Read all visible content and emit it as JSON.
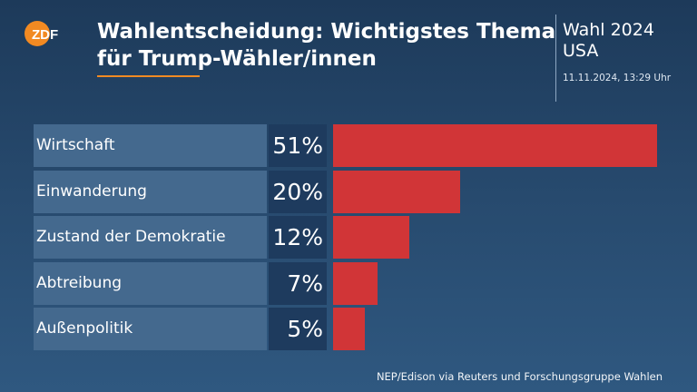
{
  "header": {
    "logo_text": "ZDF",
    "title_lines": [
      "Wahlentscheidung: Wichtigstes Thema",
      "für Trump-Wähler/innen"
    ],
    "election_line1": "Wahl 2024",
    "election_line2": "USA",
    "timestamp": "11.11.2024, 13:29 Uhr"
  },
  "colors": {
    "bar": "#d13537",
    "accent": "#f28a22",
    "label_bg": "#44698e",
    "pct_bg": "#1e3b5e"
  },
  "chart_data": {
    "type": "bar",
    "orientation": "horizontal",
    "categories": [
      "Wirtschaft",
      "Einwanderung",
      "Zustand der Demokratie",
      "Abtreibung",
      "Außenpolitik"
    ],
    "values": [
      51,
      20,
      12,
      7,
      5
    ],
    "value_labels": [
      "51%",
      "20%",
      "12%",
      "7%",
      "5%"
    ],
    "unit": "%",
    "title": "Wahlentscheidung: Wichtigstes Thema für Trump-Wähler/innen",
    "xlim": [
      0,
      51
    ]
  },
  "footer": {
    "source": "NEP/Edison via Reuters und Forschungsgruppe Wahlen"
  }
}
